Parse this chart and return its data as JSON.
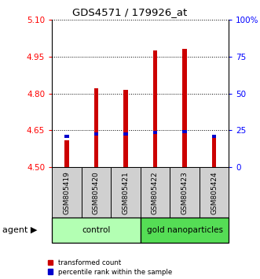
{
  "title": "GDS4571 / 179926_at",
  "samples": [
    "GSM805419",
    "GSM805420",
    "GSM805421",
    "GSM805422",
    "GSM805423",
    "GSM805424"
  ],
  "red_values": [
    4.61,
    4.82,
    4.815,
    4.975,
    4.98,
    4.63
  ],
  "blue_values": [
    4.625,
    4.635,
    4.635,
    4.642,
    4.645,
    4.625
  ],
  "ylim_left": [
    4.5,
    5.1
  ],
  "yticks_left": [
    4.5,
    4.65,
    4.8,
    4.95,
    5.1
  ],
  "yticks_right": [
    0,
    25,
    50,
    75,
    100
  ],
  "ylim_right": [
    0,
    100
  ],
  "bar_width": 0.15,
  "red_color": "#cc0000",
  "blue_color": "#0000cc",
  "group_labels": [
    "control",
    "gold nanoparticles"
  ],
  "ctrl_color": "#b3ffb3",
  "nano_color": "#55dd55",
  "gray_color": "#d0d0d0",
  "legend_red": "transformed count",
  "legend_blue": "percentile rank within the sample"
}
